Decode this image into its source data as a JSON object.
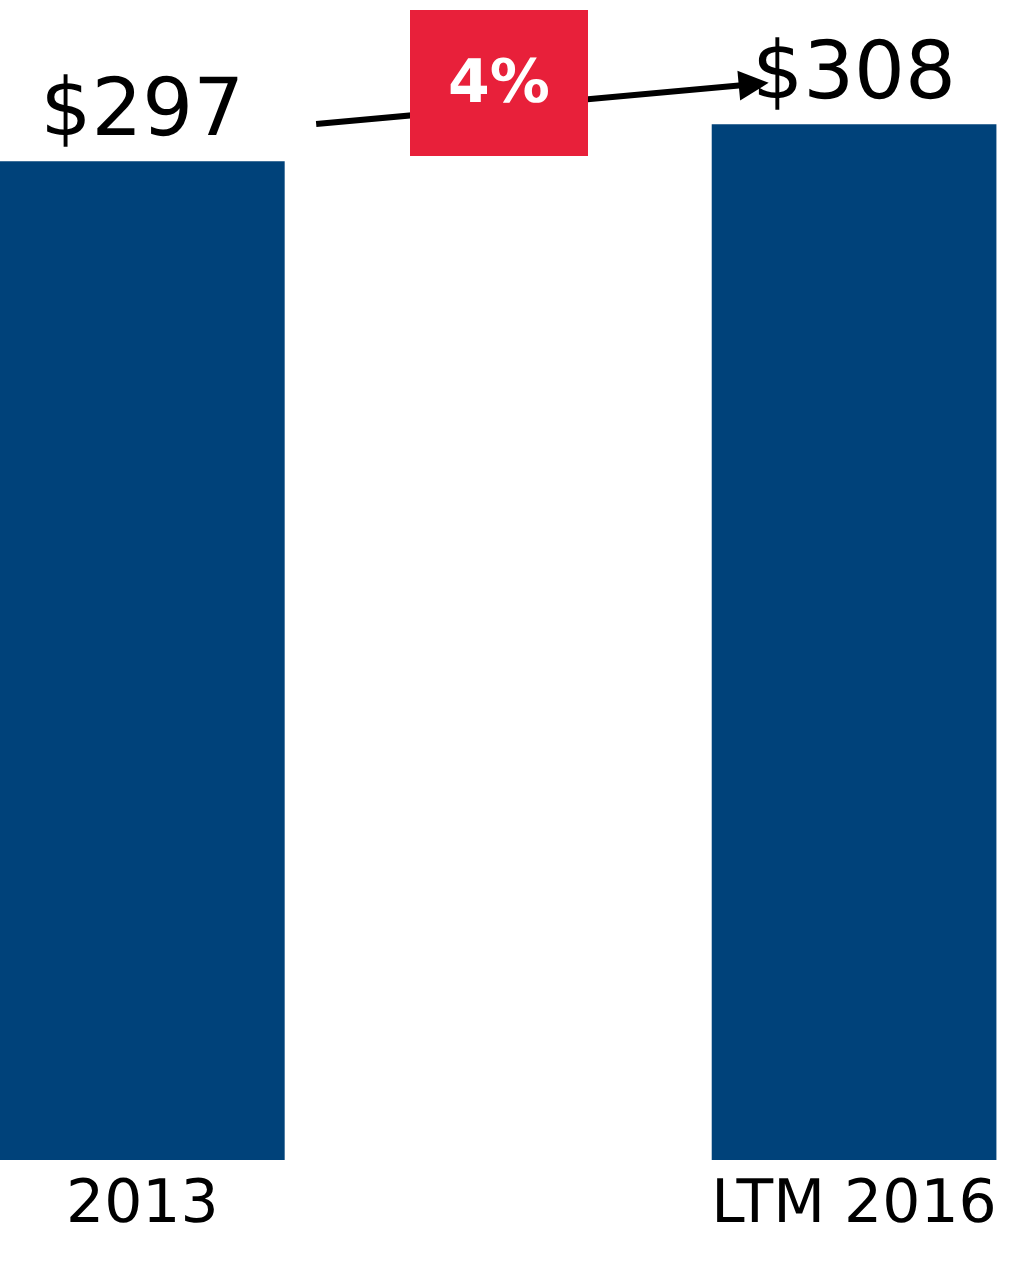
{
  "chart_data": {
    "type": "bar",
    "categories": [
      "2013",
      "LTM 2016"
    ],
    "values": [
      297,
      308
    ],
    "value_labels": [
      "$297",
      "$308"
    ],
    "color": "#00427a",
    "annotations": [
      "4%"
    ],
    "legend": false
  }
}
